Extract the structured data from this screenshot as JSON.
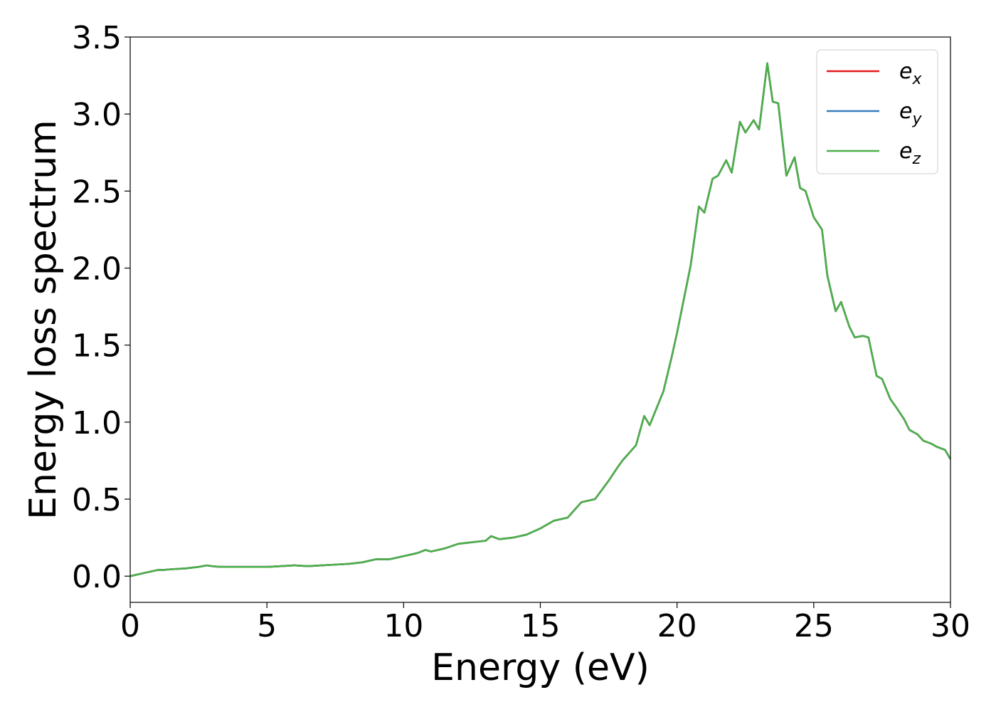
{
  "chart_data": {
    "type": "line",
    "xlabel": "Energy (eV)",
    "ylabel": "Energy loss spectrum",
    "xlim": [
      0,
      30
    ],
    "ylim": [
      -0.17,
      3.5
    ],
    "xticks": [
      "0",
      "5",
      "10",
      "15",
      "20",
      "25",
      "30"
    ],
    "yticks": [
      "0.0",
      "0.5",
      "1.0",
      "1.5",
      "2.0",
      "2.5",
      "3.0",
      "3.5"
    ],
    "grid": false,
    "legend_position": "top-right",
    "x": [
      0,
      0.5,
      1.0,
      1.2,
      1.5,
      2.0,
      2.5,
      2.8,
      3.0,
      3.3,
      4.0,
      5.0,
      5.5,
      6.0,
      6.5,
      7.0,
      7.5,
      8.0,
      8.5,
      9.0,
      9.5,
      10.0,
      10.5,
      10.8,
      11.0,
      11.5,
      12.0,
      12.5,
      13.0,
      13.2,
      13.5,
      14.0,
      14.5,
      15.0,
      15.5,
      16.0,
      16.5,
      17.0,
      17.5,
      17.8,
      18.0,
      18.5,
      18.8,
      19.0,
      19.5,
      19.8,
      20.0,
      20.5,
      20.8,
      21.0,
      21.3,
      21.5,
      21.8,
      22.0,
      22.3,
      22.5,
      22.8,
      23.0,
      23.3,
      23.5,
      23.7,
      24.0,
      24.3,
      24.5,
      24.7,
      25.0,
      25.3,
      25.5,
      25.8,
      26.0,
      26.3,
      26.5,
      26.8,
      27.0,
      27.3,
      27.5,
      27.8,
      28.0,
      28.3,
      28.5,
      28.8,
      29.0,
      29.3,
      29.5,
      29.8,
      30.0
    ],
    "series": [
      {
        "name": "e_x",
        "label_base": "e",
        "label_sub": "x",
        "color": "#e41a1c",
        "values": [
          0.0,
          0.02,
          0.04,
          0.04,
          0.045,
          0.05,
          0.06,
          0.07,
          0.065,
          0.06,
          0.06,
          0.06,
          0.065,
          0.07,
          0.065,
          0.07,
          0.075,
          0.08,
          0.09,
          0.11,
          0.11,
          0.13,
          0.15,
          0.17,
          0.16,
          0.18,
          0.21,
          0.22,
          0.23,
          0.26,
          0.24,
          0.25,
          0.27,
          0.31,
          0.36,
          0.38,
          0.48,
          0.5,
          0.62,
          0.7,
          0.75,
          0.85,
          1.04,
          0.98,
          1.2,
          1.42,
          1.58,
          2.02,
          2.4,
          2.36,
          2.58,
          2.6,
          2.7,
          2.62,
          2.95,
          2.88,
          2.96,
          2.9,
          3.33,
          3.08,
          3.07,
          2.6,
          2.72,
          2.52,
          2.5,
          2.33,
          2.25,
          1.95,
          1.72,
          1.78,
          1.62,
          1.55,
          1.56,
          1.55,
          1.3,
          1.28,
          1.15,
          1.1,
          1.02,
          0.95,
          0.92,
          0.88,
          0.86,
          0.84,
          0.82,
          0.76
        ]
      },
      {
        "name": "e_y",
        "label_base": "e",
        "label_sub": "y",
        "color": "#377eb8",
        "values": [
          0.0,
          0.02,
          0.04,
          0.04,
          0.045,
          0.05,
          0.06,
          0.07,
          0.065,
          0.06,
          0.06,
          0.06,
          0.065,
          0.07,
          0.065,
          0.07,
          0.075,
          0.08,
          0.09,
          0.11,
          0.11,
          0.13,
          0.15,
          0.17,
          0.16,
          0.18,
          0.21,
          0.22,
          0.23,
          0.26,
          0.24,
          0.25,
          0.27,
          0.31,
          0.36,
          0.38,
          0.48,
          0.5,
          0.62,
          0.7,
          0.75,
          0.85,
          1.04,
          0.98,
          1.2,
          1.42,
          1.58,
          2.02,
          2.4,
          2.36,
          2.58,
          2.6,
          2.7,
          2.62,
          2.95,
          2.88,
          2.96,
          2.9,
          3.33,
          3.08,
          3.07,
          2.6,
          2.72,
          2.52,
          2.5,
          2.33,
          2.25,
          1.95,
          1.72,
          1.78,
          1.62,
          1.55,
          1.56,
          1.55,
          1.3,
          1.28,
          1.15,
          1.1,
          1.02,
          0.95,
          0.92,
          0.88,
          0.86,
          0.84,
          0.82,
          0.76
        ]
      },
      {
        "name": "e_z",
        "label_base": "e",
        "label_sub": "z",
        "color": "#4daf4a",
        "values": [
          0.0,
          0.02,
          0.04,
          0.04,
          0.045,
          0.05,
          0.06,
          0.07,
          0.065,
          0.06,
          0.06,
          0.06,
          0.065,
          0.07,
          0.065,
          0.07,
          0.075,
          0.08,
          0.09,
          0.11,
          0.11,
          0.13,
          0.15,
          0.17,
          0.16,
          0.18,
          0.21,
          0.22,
          0.23,
          0.26,
          0.24,
          0.25,
          0.27,
          0.31,
          0.36,
          0.38,
          0.48,
          0.5,
          0.62,
          0.7,
          0.75,
          0.85,
          1.04,
          0.98,
          1.2,
          1.42,
          1.58,
          2.02,
          2.4,
          2.36,
          2.58,
          2.6,
          2.7,
          2.62,
          2.95,
          2.88,
          2.96,
          2.9,
          3.33,
          3.08,
          3.07,
          2.6,
          2.72,
          2.52,
          2.5,
          2.33,
          2.25,
          1.95,
          1.72,
          1.78,
          1.62,
          1.55,
          1.56,
          1.55,
          1.3,
          1.28,
          1.15,
          1.1,
          1.02,
          0.95,
          0.92,
          0.88,
          0.86,
          0.84,
          0.82,
          0.76
        ]
      }
    ]
  }
}
